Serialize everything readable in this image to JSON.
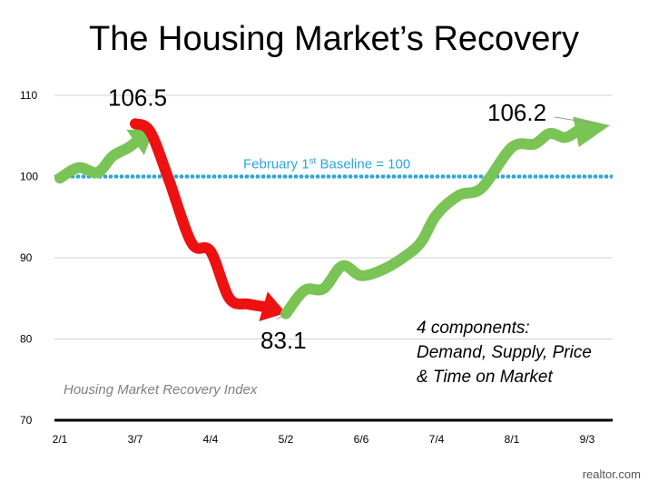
{
  "title": "The Housing Market’s Recovery",
  "source": "realtor.com",
  "chart_data": {
    "type": "line",
    "title": "The Housing Market’s Recovery",
    "ylim": [
      70,
      110
    ],
    "yticks": [
      70,
      80,
      90,
      100,
      110
    ],
    "xticks": [
      "2/1",
      "3/7",
      "4/4",
      "5/2",
      "6/6",
      "7/4",
      "8/1",
      "9/3"
    ],
    "grid": true,
    "baseline": {
      "value": 100,
      "label_pre": "February 1",
      "label_sup": "st",
      "label_post": " Baseline = 100",
      "color": "#2aa7d9"
    },
    "series": [
      {
        "segment": "rise",
        "color": "#7ac355",
        "points": [
          [
            0.0,
            99.8
          ],
          [
            0.25,
            101.1
          ],
          [
            0.5,
            100.5
          ],
          [
            0.7,
            102.5
          ],
          [
            0.9,
            103.5
          ],
          [
            1.0,
            104.2
          ]
        ],
        "arrow_to": [
          1.25,
          105.8
        ]
      },
      {
        "segment": "decline",
        "color": "#ee1111",
        "points": [
          [
            1.0,
            106.5
          ],
          [
            1.2,
            105.5
          ],
          [
            1.45,
            99.5
          ],
          [
            1.75,
            91.8
          ],
          [
            2.0,
            90.8
          ],
          [
            2.25,
            85.0
          ],
          [
            2.5,
            84.3
          ],
          [
            2.7,
            84.0
          ]
        ],
        "arrow_to": [
          3.0,
          83.2
        ]
      },
      {
        "segment": "recovery",
        "color": "#7ac355",
        "points": [
          [
            3.0,
            83.1
          ],
          [
            3.25,
            86.0
          ],
          [
            3.5,
            86.2
          ],
          [
            3.75,
            89.0
          ],
          [
            4.0,
            87.8
          ],
          [
            4.3,
            88.6
          ],
          [
            4.6,
            90.3
          ],
          [
            4.8,
            92.0
          ],
          [
            5.0,
            95.3
          ],
          [
            5.3,
            97.7
          ],
          [
            5.6,
            98.6
          ],
          [
            6.0,
            103.6
          ],
          [
            6.3,
            104.0
          ],
          [
            6.5,
            105.3
          ],
          [
            6.7,
            104.8
          ],
          [
            6.85,
            105.5
          ]
        ],
        "arrow_to": [
          7.3,
          106.3
        ]
      }
    ],
    "annotations": [
      {
        "text": "106.5",
        "x": 1.0,
        "y": 106.5
      },
      {
        "text": "83.1",
        "x": 3.0,
        "y": 83.1
      },
      {
        "text": "106.2",
        "x": 7.0,
        "y": 106.2
      }
    ],
    "note_lines": [
      "4 components:",
      "Demand, Supply, Price",
      "& Time on Market"
    ],
    "index_label": "Housing Market Recovery Index"
  }
}
